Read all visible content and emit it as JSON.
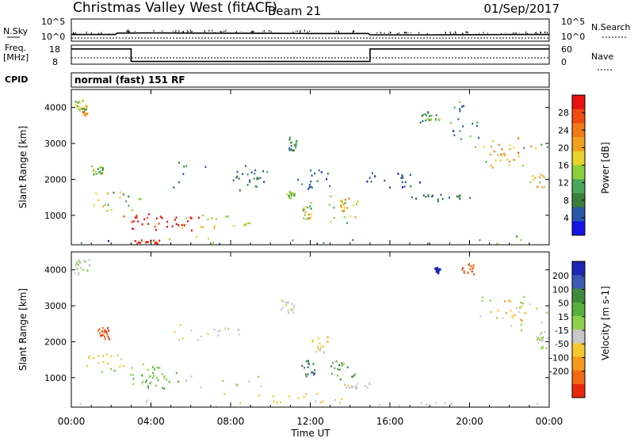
{
  "header": {
    "title": "Christmas Valley West (fitACF)",
    "beam": "Beam 21",
    "date": "01/Sep/2017"
  },
  "top_panels": {
    "nsky_label": "N.Sky",
    "nsearch_label": "N.Search",
    "nsky_ticks": [
      "10^5",
      "10^0"
    ],
    "nsky_right_ticks": [
      "10^5",
      "10^0"
    ],
    "freq_label_1": "Freq.",
    "freq_label_2": "[MHz]",
    "freq_ticks": [
      "18",
      "8"
    ],
    "nave_label": "Nave",
    "nave_ticks": [
      "60",
      "0"
    ],
    "cpid_label": "CPID",
    "cpid_text": "normal (fast) 151 RF"
  },
  "colors": {
    "power": [
      "#1414e6",
      "#2a55a8",
      "#3c7d3c",
      "#49a85a",
      "#8ccf3a",
      "#e6d22a",
      "#f2a020",
      "#f07a18",
      "#ee4a12",
      "#e81010"
    ],
    "velocity": [
      "#1e24b4",
      "#3c5ab4",
      "#3f8a3f",
      "#57b03c",
      "#8fd04a",
      "#c8c8c8",
      "#f5c830",
      "#f59a1e",
      "#f06a14",
      "#e82a0a"
    ]
  },
  "chart_data": [
    {
      "type": "line",
      "name": "nsky-nsearch",
      "x_range": [
        0,
        24
      ],
      "log_scale": true,
      "series": [
        {
          "name": "N.Sky",
          "x": [
            0,
            2.2,
            2.3,
            4,
            6,
            8,
            10,
            12,
            14,
            14.9,
            15,
            18,
            20,
            22,
            24
          ],
          "y": [
            10,
            10,
            25,
            28,
            26,
            24,
            22,
            20,
            20,
            20,
            8,
            8,
            9,
            10,
            10
          ]
        },
        {
          "name": "N.Search",
          "x": [
            0,
            24
          ],
          "y": [
            1,
            1
          ]
        }
      ]
    },
    {
      "type": "line",
      "name": "freq-nave",
      "x_range": [
        0,
        24
      ],
      "freq_range": [
        8,
        18
      ],
      "nave_range": [
        0,
        60
      ],
      "series": [
        {
          "name": "Freq.",
          "x": [
            0,
            3,
            3,
            15,
            15,
            24
          ],
          "y": [
            16,
            16,
            9.4,
            9.4,
            16,
            16
          ]
        },
        {
          "name": "Nave",
          "x": [
            0,
            24
          ],
          "y": [
            20,
            20
          ]
        }
      ]
    },
    {
      "type": "heatmap",
      "name": "power",
      "xlabel": "",
      "ylabel": "Slant Range [km]",
      "xlim": [
        0,
        24
      ],
      "ylim": [
        180,
        4500
      ],
      "yticks": [
        1000,
        2000,
        3000,
        4000
      ],
      "colorbar_label": "Power [dB]",
      "colorbar_ticks": [
        "28",
        "24",
        "20",
        "16",
        "12",
        "8",
        "4"
      ],
      "colorbar_range": [
        0,
        30
      ],
      "blobs": [
        {
          "t": [
            0.1,
            0.7
          ],
          "r": [
            3900,
            4250
          ],
          "v": [
            14,
            6
          ]
        },
        {
          "t": [
            0.5,
            0.8
          ],
          "r": [
            3800,
            4100
          ],
          "v": [
            18,
            8
          ]
        },
        {
          "t": [
            1.0,
            1.6
          ],
          "r": [
            2100,
            2400
          ],
          "v": [
            12,
            6
          ]
        },
        {
          "t": [
            0.5,
            3.5
          ],
          "r": [
            1100,
            1700
          ],
          "v": [
            14,
            7
          ]
        },
        {
          "t": [
            2.0,
            6.5
          ],
          "r": [
            600,
            1100
          ],
          "v": [
            28,
            4
          ]
        },
        {
          "t": [
            3.0,
            6.0
          ],
          "r": [
            700,
            1000
          ],
          "v": [
            30,
            2
          ]
        },
        {
          "t": [
            5.5,
            9.0
          ],
          "r": [
            650,
            1050
          ],
          "v": [
            16,
            6
          ]
        },
        {
          "t": [
            5.0,
            10.0
          ],
          "r": [
            1700,
            2600
          ],
          "v": [
            6,
            4
          ]
        },
        {
          "t": [
            8.0,
            10.0
          ],
          "r": [
            1800,
            2200
          ],
          "v": [
            8,
            4
          ]
        },
        {
          "t": [
            10.8,
            11.2
          ],
          "r": [
            1500,
            1700
          ],
          "v": [
            12,
            4
          ]
        },
        {
          "t": [
            10.8,
            11.3
          ],
          "r": [
            2800,
            3200
          ],
          "v": [
            8,
            4
          ]
        },
        {
          "t": [
            11.3,
            13.0
          ],
          "r": [
            1700,
            2300
          ],
          "v": [
            6,
            4
          ]
        },
        {
          "t": [
            11.6,
            12.1
          ],
          "r": [
            900,
            1400
          ],
          "v": [
            14,
            6
          ]
        },
        {
          "t": [
            12.9,
            14.5
          ],
          "r": [
            800,
            1600
          ],
          "v": [
            14,
            6
          ]
        },
        {
          "t": [
            13.4,
            14.0
          ],
          "r": [
            1100,
            1500
          ],
          "v": [
            20,
            5
          ]
        },
        {
          "t": [
            14.5,
            17.5
          ],
          "r": [
            1800,
            2200
          ],
          "v": [
            4,
            3
          ]
        },
        {
          "t": [
            17.0,
            20.0
          ],
          "r": [
            1400,
            1600
          ],
          "v": [
            6,
            3
          ]
        },
        {
          "t": [
            17.5,
            18.5
          ],
          "r": [
            3600,
            3900
          ],
          "v": [
            10,
            6
          ]
        },
        {
          "t": [
            19.0,
            20.5
          ],
          "r": [
            3100,
            4200
          ],
          "v": [
            8,
            6
          ]
        },
        {
          "t": [
            20.0,
            24.0
          ],
          "r": [
            2300,
            3200
          ],
          "v": [
            16,
            6
          ]
        },
        {
          "t": [
            21.0,
            22.5
          ],
          "r": [
            2500,
            3000
          ],
          "v": [
            20,
            5
          ]
        },
        {
          "t": [
            23.0,
            24.0
          ],
          "r": [
            1800,
            2200
          ],
          "v": [
            18,
            4
          ]
        },
        {
          "t": [
            0.0,
            24.0
          ],
          "r": [
            180,
            450
          ],
          "v": [
            10,
            8
          ]
        },
        {
          "t": [
            3.0,
            4.5
          ],
          "r": [
            200,
            350
          ],
          "v": [
            28,
            4
          ]
        }
      ]
    },
    {
      "type": "heatmap",
      "name": "velocity",
      "xlabel": "Time UT",
      "ylabel": "Slant Range [km]",
      "xlim": [
        0,
        24
      ],
      "ylim": [
        180,
        4500
      ],
      "yticks": [
        1000,
        2000,
        3000,
        4000
      ],
      "xticks": [
        "00:00",
        "04:00",
        "08:00",
        "12:00",
        "16:00",
        "20:00",
        "00:00"
      ],
      "colorbar_label": "Velocity [m s-1]",
      "colorbar_ticks": [
        "200",
        "100",
        "50",
        "15",
        "-15",
        "-50",
        "-100",
        "-200"
      ],
      "colorbar_range": [
        -250,
        250
      ],
      "blobs": [
        {
          "t": [
            0.1,
            1.0
          ],
          "r": [
            3850,
            4300
          ],
          "v": [
            0,
            10
          ]
        },
        {
          "t": [
            1.3,
            1.9
          ],
          "r": [
            2100,
            2450
          ],
          "v": [
            -200,
            30
          ]
        },
        {
          "t": [
            0.5,
            2.8
          ],
          "r": [
            1300,
            1750
          ],
          "v": [
            -70,
            25
          ]
        },
        {
          "t": [
            1.5,
            5.5
          ],
          "r": [
            1000,
            1400
          ],
          "v": [
            40,
            40
          ]
        },
        {
          "t": [
            2.5,
            9.5
          ],
          "r": [
            750,
            1250
          ],
          "v": [
            0,
            8
          ]
        },
        {
          "t": [
            3.0,
            5.5
          ],
          "r": [
            700,
            1100
          ],
          "v": [
            60,
            30
          ]
        },
        {
          "t": [
            5.0,
            8.5
          ],
          "r": [
            2000,
            2500
          ],
          "v": [
            -40,
            20
          ]
        },
        {
          "t": [
            10.5,
            11.2
          ],
          "r": [
            2800,
            3200
          ],
          "v": [
            -30,
            30
          ]
        },
        {
          "t": [
            11.5,
            12.2
          ],
          "r": [
            1000,
            1500
          ],
          "v": [
            150,
            40
          ]
        },
        {
          "t": [
            12.9,
            14.2
          ],
          "r": [
            900,
            1500
          ],
          "v": [
            80,
            60
          ]
        },
        {
          "t": [
            12.0,
            13.0
          ],
          "r": [
            1700,
            2200
          ],
          "v": [
            -60,
            30
          ]
        },
        {
          "t": [
            13.5,
            15.0
          ],
          "r": [
            700,
            900
          ],
          "v": [
            -40,
            30
          ]
        },
        {
          "t": [
            18.2,
            18.5
          ],
          "r": [
            3900,
            4100
          ],
          "v": [
            220,
            10
          ]
        },
        {
          "t": [
            19.5,
            20.2
          ],
          "r": [
            3900,
            4200
          ],
          "v": [
            -180,
            30
          ]
        },
        {
          "t": [
            20.0,
            24.0
          ],
          "r": [
            2300,
            3300
          ],
          "v": [
            0,
            10
          ]
        },
        {
          "t": [
            21.0,
            23.5
          ],
          "r": [
            2600,
            3200
          ],
          "v": [
            -60,
            60
          ]
        },
        {
          "t": [
            23.3,
            24.0
          ],
          "r": [
            1800,
            2300
          ],
          "v": [
            0,
            10
          ]
        },
        {
          "t": [
            0.0,
            24.0
          ],
          "r": [
            180,
            420
          ],
          "v": [
            -30,
            20
          ]
        },
        {
          "t": [
            7.0,
            14.0
          ],
          "r": [
            250,
            600
          ],
          "v": [
            -70,
            20
          ]
        }
      ]
    }
  ]
}
